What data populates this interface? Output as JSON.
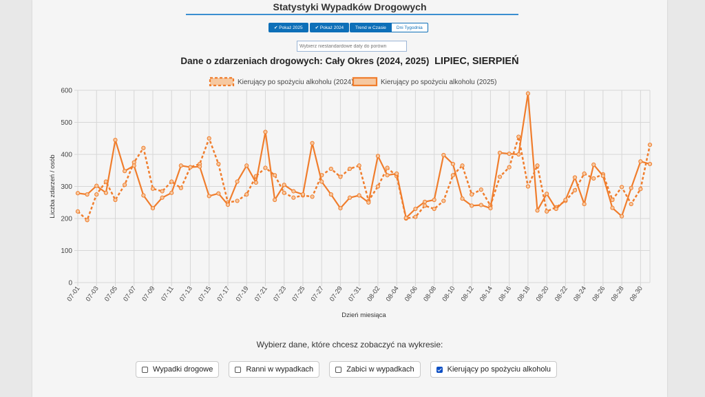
{
  "app": {
    "title": "Statystyki Wypadków Drogowych"
  },
  "toolbar": {
    "show_2025_label": "✔ Pokaż 2025",
    "show_2024_label": "✔ Pokaż 2024",
    "trend_label": "Trend w Czasie",
    "weekdays_label": "Dni Tygodnia"
  },
  "date_picker": {
    "placeholder": "Wybierz niestandardowe daty do porówn"
  },
  "header": {
    "chart_title": "Dane o zdarzeniach drogowych: Cały Okres (2024, 2025)",
    "months": "LIPIEC, SIERPIEŃ"
  },
  "filters": {
    "prompt": "Wybierz dane, które chcesz zobaczyć na wykresie:",
    "options": [
      {
        "label": "Wypadki drogowe",
        "checked": false
      },
      {
        "label": "Ranni w wypadkach",
        "checked": false
      },
      {
        "label": "Zabici w wypadkach",
        "checked": false
      },
      {
        "label": "Kierujący po spożyciu alkoholu",
        "checked": true
      }
    ]
  },
  "colors": {
    "accent": "#0d6fb8",
    "series": "#f07d2c",
    "series_fill": "#f6c8a0",
    "grid": "#d6d6d6"
  },
  "chart_data": {
    "type": "line",
    "xlabel": "Dzień miesiąca",
    "ylabel": "Liczba zdarzeń / osób",
    "ylim": [
      0,
      600
    ],
    "yticks": [
      0,
      100,
      200,
      300,
      400,
      500,
      600
    ],
    "grid": true,
    "legend_position": "top-center",
    "x": [
      "07-01",
      "07-02",
      "07-03",
      "07-04",
      "07-05",
      "07-06",
      "07-07",
      "07-08",
      "07-09",
      "07-10",
      "07-11",
      "07-12",
      "07-13",
      "07-14",
      "07-15",
      "07-16",
      "07-17",
      "07-18",
      "07-19",
      "07-20",
      "07-21",
      "07-22",
      "07-23",
      "07-24",
      "07-25",
      "07-26",
      "07-27",
      "07-28",
      "07-29",
      "07-30",
      "07-31",
      "08-01",
      "08-02",
      "08-03",
      "08-04",
      "08-05",
      "08-06",
      "08-07",
      "08-08",
      "08-09",
      "08-10",
      "08-11",
      "08-12",
      "08-13",
      "08-14",
      "08-15",
      "08-16",
      "08-17",
      "08-18",
      "08-19",
      "08-20",
      "08-21",
      "08-22",
      "08-23",
      "08-24",
      "08-25",
      "08-26",
      "08-27",
      "08-28",
      "08-29",
      "08-30",
      "08-31"
    ],
    "x_tick_labels": [
      "07-01",
      "07-03",
      "07-05",
      "07-07",
      "07-09",
      "07-11",
      "07-13",
      "07-15",
      "07-17",
      "07-19",
      "07-21",
      "07-23",
      "07-25",
      "07-27",
      "07-29",
      "07-31",
      "08-02",
      "08-04",
      "08-06",
      "08-08",
      "08-10",
      "08-12",
      "08-14",
      "08-16",
      "08-18",
      "08-20",
      "08-22",
      "08-24",
      "08-26",
      "08-28",
      "08-30"
    ],
    "series": [
      {
        "name": "Kierujący po spożyciu alkoholu (2024)",
        "style": "dashed",
        "values": [
          222,
          195,
          275,
          315,
          258,
          305,
          375,
          420,
          293,
          285,
          315,
          295,
          360,
          370,
          450,
          370,
          250,
          255,
          275,
          332,
          358,
          335,
          280,
          265,
          272,
          268,
          335,
          355,
          330,
          355,
          365,
          255,
          300,
          358,
          332,
          200,
          205,
          240,
          230,
          255,
          335,
          365,
          275,
          290,
          240,
          330,
          360,
          455,
          300,
          365,
          222,
          235,
          255,
          288,
          340,
          325,
          338,
          258,
          298,
          245,
          292,
          430
        ]
      },
      {
        "name": "Kierujący po spożyciu alkoholu (2025)",
        "style": "solid",
        "values": [
          279,
          275,
          302,
          280,
          445,
          348,
          365,
          272,
          232,
          265,
          280,
          365,
          360,
          362,
          270,
          278,
          243,
          315,
          365,
          312,
          470,
          258,
          305,
          285,
          275,
          435,
          315,
          275,
          232,
          265,
          272,
          250,
          395,
          335,
          340,
          202,
          230,
          252,
          258,
          398,
          370,
          262,
          240,
          242,
          232,
          405,
          402,
          400,
          590,
          225,
          277,
          230,
          258,
          328,
          245,
          368,
          333,
          233,
          207,
          295,
          378,
          370
        ]
      }
    ]
  }
}
